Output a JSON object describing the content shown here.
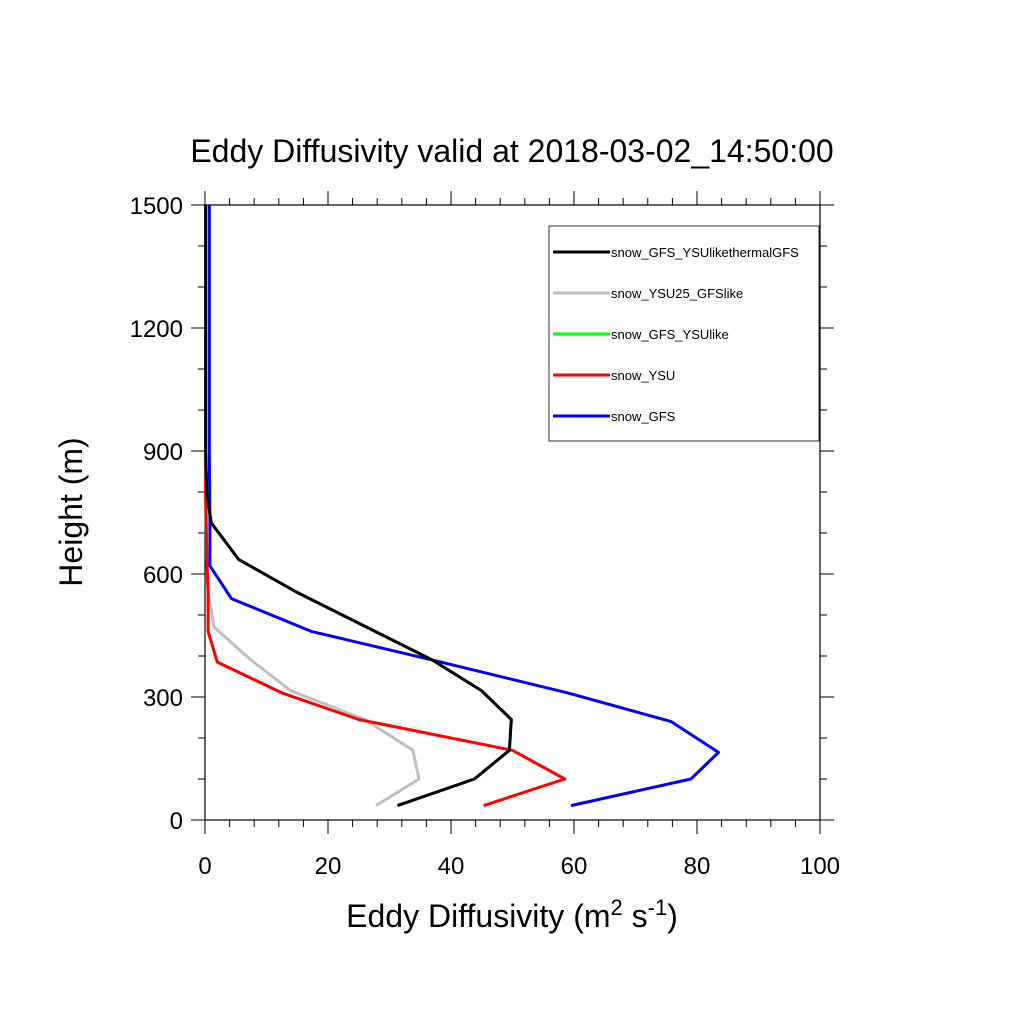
{
  "chart_data": {
    "type": "line",
    "title": "Eddy Diffusivity valid at 2018-03-02_14:50:00",
    "xlabel": {
      "base": "Eddy Diffusivity (m",
      "sup1": "2",
      "mid": " s",
      "sup2": "-1",
      "end": ")"
    },
    "ylabel": "Height (m)",
    "xlim": [
      0,
      100
    ],
    "ylim": [
      0,
      1500
    ],
    "xticks": [
      0,
      20,
      40,
      60,
      80,
      100
    ],
    "yticks": [
      0,
      300,
      600,
      900,
      1200,
      1500
    ],
    "grid": false,
    "legend_position": "top-right",
    "series": [
      {
        "name": "snow_GFS_YSUlikethermalGFS",
        "color": "#000000",
        "points": [
          [
            31.3,
            35
          ],
          [
            43.8,
            100
          ],
          [
            49.5,
            170
          ],
          [
            49.8,
            245
          ],
          [
            45,
            315
          ],
          [
            37,
            390
          ],
          [
            15,
            555
          ],
          [
            5.5,
            635
          ],
          [
            1,
            725
          ],
          [
            0.3,
            800
          ],
          [
            0.1,
            900
          ],
          [
            0.1,
            1500
          ]
        ]
      },
      {
        "name": "snow_YSU25_GFSlike",
        "color": "#bfbfbf",
        "points": [
          [
            27.8,
            35
          ],
          [
            34.8,
            100
          ],
          [
            33.8,
            170
          ],
          [
            26,
            245
          ],
          [
            14,
            315
          ],
          [
            7.5,
            390
          ],
          [
            1.5,
            470
          ],
          [
            0.5,
            555
          ],
          [
            0.3,
            635
          ],
          [
            0.2,
            725
          ],
          [
            0.1,
            800
          ],
          [
            0.1,
            1500
          ]
        ]
      },
      {
        "name": "snow_GFS_YSUlike",
        "color": "#00ff00",
        "points": [
          [
            31.3,
            35
          ],
          [
            43.8,
            100
          ],
          [
            49.5,
            170
          ],
          [
            49.8,
            245
          ],
          [
            45,
            315
          ],
          [
            37,
            390
          ],
          [
            15,
            555
          ],
          [
            5.5,
            635
          ],
          [
            1,
            725
          ],
          [
            0.3,
            800
          ],
          [
            0.1,
            900
          ],
          [
            0.1,
            1500
          ]
        ]
      },
      {
        "name": "snow_YSU",
        "color": "#ff0000",
        "points": [
          [
            45.3,
            35
          ],
          [
            58.5,
            100
          ],
          [
            50,
            170
          ],
          [
            25,
            245
          ],
          [
            12.5,
            310
          ],
          [
            2,
            385
          ],
          [
            0.5,
            460
          ],
          [
            0.5,
            555
          ],
          [
            0.3,
            635
          ],
          [
            0.2,
            725
          ],
          [
            0.1,
            800
          ],
          [
            0.1,
            1500
          ]
        ]
      },
      {
        "name": "snow_GFS",
        "color": "#0000ff",
        "points": [
          [
            59.5,
            35
          ],
          [
            79,
            100
          ],
          [
            83.5,
            165
          ],
          [
            75.8,
            240
          ],
          [
            59,
            310
          ],
          [
            37,
            390
          ],
          [
            17.3,
            460
          ],
          [
            4.3,
            540
          ],
          [
            0.8,
            620
          ],
          [
            0.8,
            725
          ],
          [
            0.7,
            900
          ],
          [
            0.7,
            1500
          ]
        ]
      }
    ]
  }
}
